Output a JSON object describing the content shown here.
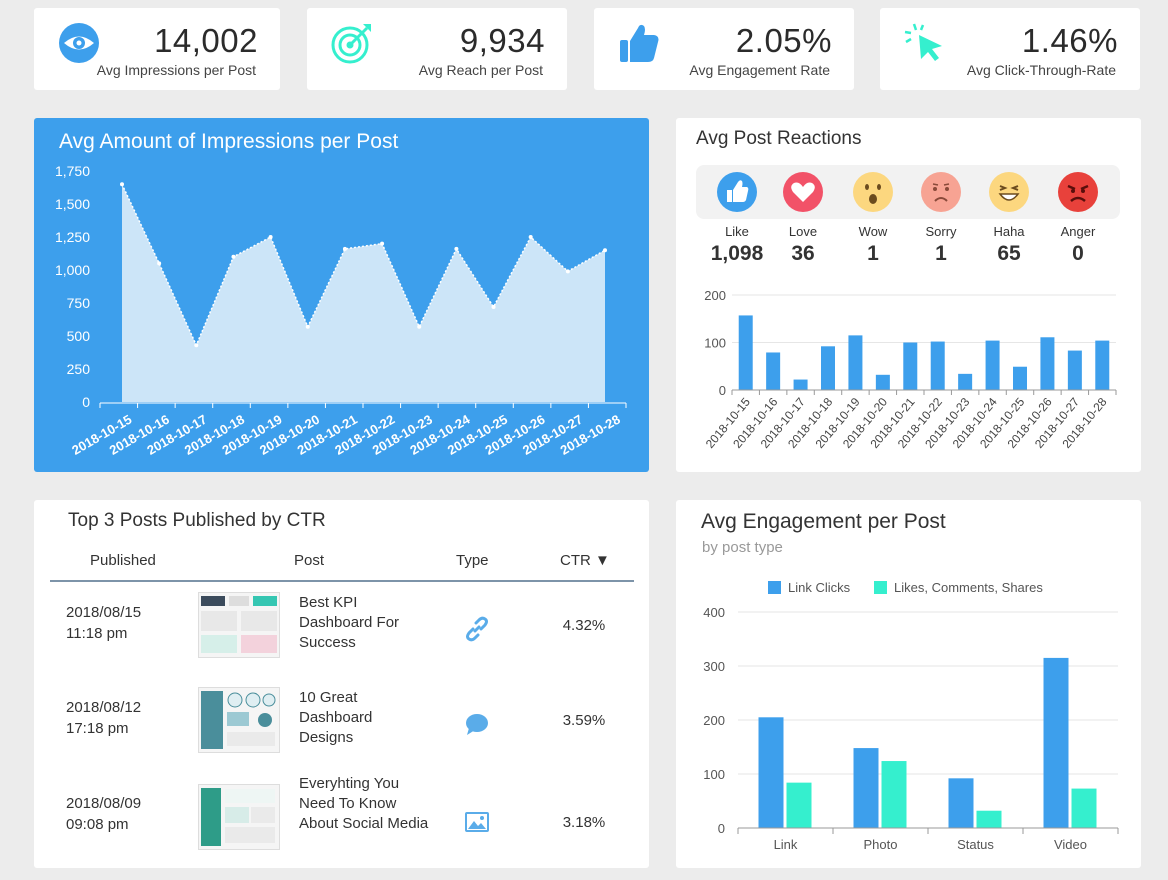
{
  "kpis": [
    {
      "value": "14,002",
      "label": "Avg Impressions per Post",
      "icon": "eye-icon"
    },
    {
      "value": "9,934",
      "label": "Avg Reach per Post",
      "icon": "target-icon"
    },
    {
      "value": "2.05%",
      "label": "Avg Engagement Rate",
      "icon": "thumbs-up-icon"
    },
    {
      "value": "1.46%",
      "label": "Avg Click-Through-Rate",
      "icon": "cursor-click-icon"
    }
  ],
  "impressions": {
    "title": "Avg Amount of Impressions per Post"
  },
  "reactions": {
    "title": "Avg Post Reactions",
    "items": [
      {
        "label": "Like",
        "value": "1,098",
        "icon": "like-icon",
        "color": "#3d9fec"
      },
      {
        "label": "Love",
        "value": "36",
        "icon": "love-icon",
        "color": "#f25268"
      },
      {
        "label": "Wow",
        "value": "1",
        "icon": "wow-icon",
        "color": "#fcd77f"
      },
      {
        "label": "Sorry",
        "value": "1",
        "icon": "sorry-icon",
        "color": "#f7a393"
      },
      {
        "label": "Haha",
        "value": "65",
        "icon": "haha-icon",
        "color": "#fcd77f"
      },
      {
        "label": "Anger",
        "value": "0",
        "icon": "anger-icon",
        "color": "#e8413b"
      }
    ]
  },
  "top_posts": {
    "title": "Top 3 Posts Published by CTR",
    "headers": {
      "published": "Published",
      "post": "Post",
      "type": "Type",
      "ctr": "CTR ▼"
    },
    "rows": [
      {
        "date": "2018/08/15",
        "time": "11:18 pm",
        "title": "Best KPI Dashboard For Success",
        "type_icon": "link-icon",
        "ctr": "4.32%"
      },
      {
        "date": "2018/08/12",
        "time": "17:18 pm",
        "title": "10 Great Dashboard Designs",
        "type_icon": "speech-bubble-icon",
        "ctr": "3.59%"
      },
      {
        "date": "2018/08/09",
        "time": "09:08 pm",
        "title": "Everyhting You Need To Know About Social Media",
        "type_icon": "image-icon",
        "ctr": "3.18%"
      }
    ]
  },
  "engagement": {
    "title": "Avg Engagement per Post",
    "subtitle": "by post type"
  },
  "chart_data": [
    {
      "id": "impressions",
      "type": "area",
      "title": "Avg Amount of Impressions per Post",
      "categories": [
        "2018-10-15",
        "2018-10-16",
        "2018-10-17",
        "2018-10-18",
        "2018-10-19",
        "2018-10-20",
        "2018-10-21",
        "2018-10-22",
        "2018-10-23",
        "2018-10-24",
        "2018-10-25",
        "2018-10-26",
        "2018-10-27",
        "2018-10-28"
      ],
      "values": [
        1650,
        1050,
        430,
        1100,
        1250,
        570,
        1160,
        1200,
        570,
        1160,
        720,
        1250,
        990,
        1150
      ],
      "yticks": [
        "0",
        "250",
        "500",
        "750",
        "1,000",
        "1,250",
        "1,500",
        "1,750"
      ],
      "ylim": [
        0,
        1750
      ],
      "grid": false,
      "colors": {
        "fill": "#cce5f8",
        "background": "#3d9fec"
      }
    },
    {
      "id": "reactions",
      "type": "bar",
      "categories": [
        "2018-10-15",
        "2018-10-16",
        "2018-10-17",
        "2018-10-18",
        "2018-10-19",
        "2018-10-20",
        "2018-10-21",
        "2018-10-22",
        "2018-10-23",
        "2018-10-24",
        "2018-10-25",
        "2018-10-26",
        "2018-10-27",
        "2018-10-28"
      ],
      "values": [
        157,
        79,
        22,
        92,
        115,
        32,
        100,
        102,
        34,
        104,
        49,
        111,
        83,
        104
      ],
      "yticks": [
        "0",
        "100",
        "200"
      ],
      "ylim": [
        0,
        200
      ],
      "grid": true,
      "colors": {
        "bar": "#3d9fec"
      }
    },
    {
      "id": "engagement",
      "type": "bar",
      "title": "Avg Engagement per Post",
      "categories": [
        "Link",
        "Photo",
        "Status",
        "Video"
      ],
      "series": [
        {
          "name": "Link Clicks",
          "values": [
            205,
            148,
            92,
            315
          ],
          "color": "#3d9fec"
        },
        {
          "name": "Likes, Comments, Shares",
          "values": [
            84,
            124,
            32,
            73
          ],
          "color": "#35efce"
        }
      ],
      "yticks": [
        "0",
        "100",
        "200",
        "300",
        "400"
      ],
      "ylim": [
        0,
        400
      ],
      "legend": "top-left",
      "grid": true
    }
  ]
}
